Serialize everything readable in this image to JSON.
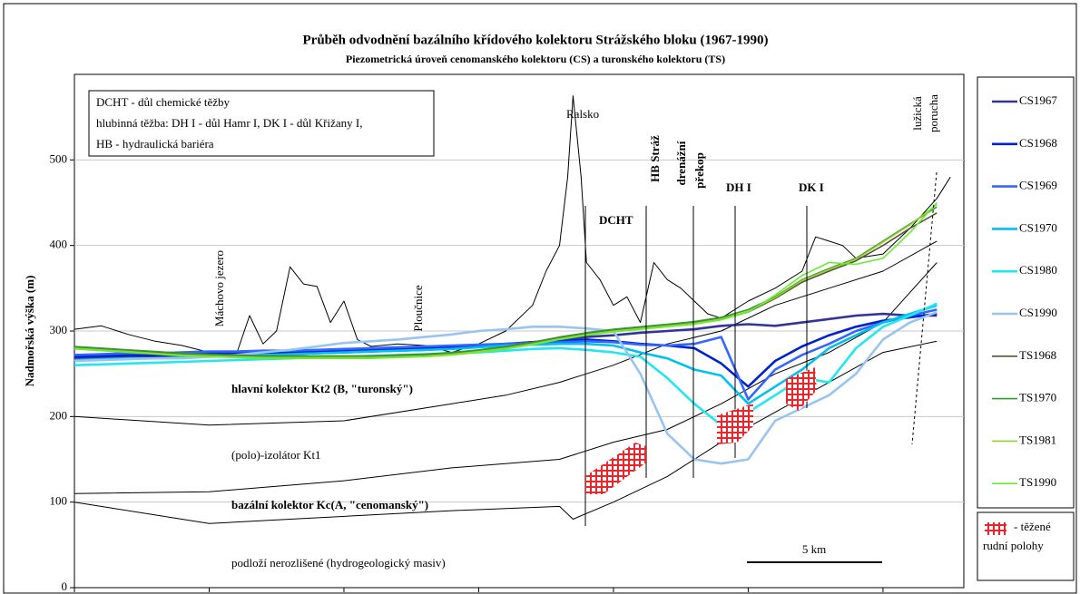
{
  "chart_data": {
    "type": "line",
    "title": "Průběh odvodnění bazálního křídového kolektoru Strážského bloku (1967-1990)",
    "subtitle": "Piezometrická úroveň cenomanského kolektoru (CS) a turonského kolektoru (TS)",
    "y_label": "Nadmořská výška (m)",
    "ylim": [
      0,
      600
    ],
    "yticks": [
      0,
      100,
      200,
      300,
      400,
      500
    ],
    "xlim": [
      0,
      33
    ],
    "xticks": [
      0,
      5,
      10,
      15,
      20,
      25,
      30
    ],
    "grid": true,
    "legend": "right",
    "x": [
      0,
      1,
      2,
      3,
      4,
      5,
      6,
      7,
      8,
      9,
      10,
      11,
      12,
      13,
      14,
      15,
      16,
      17,
      18,
      19,
      20,
      21,
      22,
      23,
      24,
      25,
      26,
      27,
      28,
      29,
      30,
      31,
      32
    ],
    "series": [
      {
        "name": "CS1967",
        "color": "#333399",
        "values": [
          268,
          269,
          270,
          270,
          271,
          272,
          272,
          273,
          273,
          274,
          275,
          276,
          277,
          278,
          280,
          282,
          284,
          287,
          290,
          293,
          295,
          298,
          300,
          302,
          306,
          308,
          306,
          310,
          314,
          318,
          320,
          318,
          318
        ]
      },
      {
        "name": "CS1968",
        "color": "#0022cc",
        "values": [
          270,
          271,
          272,
          272,
          273,
          274,
          274,
          275,
          275,
          276,
          277,
          278,
          279,
          280,
          281,
          283,
          285,
          287,
          288,
          290,
          288,
          285,
          283,
          280,
          262,
          235,
          265,
          282,
          295,
          305,
          312,
          316,
          320
        ]
      },
      {
        "name": "CS1969",
        "color": "#3366ff",
        "values": [
          272,
          273,
          274,
          274,
          275,
          276,
          276,
          277,
          277,
          278,
          279,
          280,
          281,
          282,
          283,
          284,
          285,
          286,
          287,
          288,
          287,
          284,
          283,
          285,
          293,
          220,
          255,
          272,
          285,
          300,
          310,
          318,
          325
        ]
      },
      {
        "name": "CS1970",
        "color": "#00c0f0",
        "values": [
          266,
          267,
          268,
          268,
          269,
          270,
          271,
          272,
          273,
          274,
          275,
          276,
          277,
          278,
          279,
          281,
          283,
          284,
          285,
          285,
          283,
          275,
          268,
          255,
          248,
          215,
          235,
          255,
          280,
          295,
          310,
          320,
          330
        ]
      },
      {
        "name": "CS1980",
        "color": "#22e6f0",
        "values": [
          260,
          261,
          262,
          263,
          264,
          265,
          266,
          267,
          268,
          269,
          270,
          271,
          272,
          273,
          274,
          275,
          277,
          279,
          280,
          278,
          275,
          270,
          245,
          215,
          190,
          205,
          225,
          245,
          240,
          280,
          305,
          318,
          332
        ]
      },
      {
        "name": "CS1990",
        "color": "#99c4f0",
        "values": [
          265,
          266,
          267,
          268,
          268,
          270,
          272,
          275,
          278,
          282,
          286,
          288,
          290,
          293,
          296,
          300,
          302,
          305,
          305,
          303,
          300,
          250,
          180,
          150,
          145,
          150,
          195,
          210,
          225,
          250,
          290,
          310,
          322
        ]
      },
      {
        "name": "TS1968",
        "color": "#555533",
        "values": [
          281,
          279,
          277,
          275,
          273,
          272,
          271,
          270,
          270,
          270,
          270,
          270,
          271,
          272,
          274,
          277,
          281,
          286,
          292,
          297,
          301,
          304,
          307,
          310,
          315,
          322,
          338,
          357,
          370,
          382,
          400,
          420,
          438
        ]
      },
      {
        "name": "TS1970",
        "color": "#339933",
        "values": [
          282,
          280,
          278,
          276,
          274,
          273,
          272,
          271,
          271,
          271,
          271,
          271,
          272,
          273,
          275,
          278,
          282,
          287,
          293,
          298,
          302,
          305,
          308,
          311,
          316,
          325,
          340,
          360,
          373,
          385,
          405,
          425,
          445
        ]
      },
      {
        "name": "TS1981",
        "color": "#99cc33",
        "values": [
          280,
          278,
          276,
          274,
          272,
          271,
          270,
          269,
          269,
          269,
          269,
          269,
          270,
          271,
          273,
          276,
          280,
          285,
          291,
          296,
          300,
          303,
          306,
          309,
          314,
          323,
          339,
          359,
          372,
          384,
          404,
          424,
          448
        ]
      },
      {
        "name": "TS1990",
        "color": "#66ee33",
        "values": [
          279,
          277,
          275,
          273,
          271,
          270,
          269,
          268,
          268,
          268,
          268,
          268,
          269,
          270,
          272,
          275,
          279,
          284,
          290,
          295,
          299,
          302,
          305,
          308,
          313,
          322,
          342,
          365,
          380,
          378,
          385,
          415,
          450
        ]
      }
    ],
    "terrain": {
      "color": "#000000",
      "x": [
        0,
        1,
        2,
        3,
        4,
        5,
        5.5,
        6,
        6.5,
        7,
        7.5,
        8,
        8.5,
        9,
        9.5,
        10,
        10.5,
        11,
        12,
        13,
        14,
        15,
        16,
        17,
        17.5,
        18,
        18.3,
        18.5,
        18.8,
        19,
        19.5,
        20,
        20.5,
        21,
        21.5,
        22,
        22.5,
        23,
        23.5,
        24,
        25,
        26,
        27,
        27.5,
        28,
        28.5,
        29,
        30,
        31,
        32,
        32.5
      ],
      "values": [
        302,
        306,
        296,
        288,
        283,
        275,
        270,
        272,
        318,
        285,
        300,
        375,
        355,
        352,
        310,
        335,
        290,
        282,
        285,
        283,
        275,
        285,
        300,
        330,
        370,
        400,
        480,
        575,
        480,
        380,
        360,
        330,
        340,
        310,
        380,
        360,
        350,
        335,
        320,
        315,
        335,
        350,
        370,
        410,
        405,
        400,
        385,
        390,
        420,
        455,
        480
      ]
    },
    "boundaries": [
      {
        "color": "#000000",
        "x": [
          0,
          5,
          10,
          14,
          16,
          18,
          20,
          22,
          24,
          26,
          28,
          30,
          32
        ],
        "values": [
          200,
          190,
          195,
          215,
          225,
          240,
          260,
          285,
          300,
          330,
          350,
          370,
          405
        ]
      },
      {
        "color": "#000000",
        "x": [
          0,
          5,
          10,
          14,
          18,
          20,
          22,
          24,
          26,
          28,
          30,
          32
        ],
        "values": [
          110,
          112,
          125,
          140,
          150,
          170,
          185,
          215,
          250,
          275,
          310,
          380
        ]
      },
      {
        "color": "#000000",
        "x": [
          0,
          5,
          8,
          14,
          18,
          18.5,
          20,
          22,
          24,
          26,
          28,
          30,
          32
        ],
        "values": [
          100,
          75,
          80,
          90,
          95,
          80,
          100,
          130,
          170,
          205,
          240,
          275,
          288
        ]
      }
    ],
    "annotations": [
      "DCHT - důl chemické těžby",
      "hlubinná těžba:  DH I - důl Hamr I,  DK I - důl Křižany I,",
      "HB - hydraulická bariéra",
      "Ralsko",
      "Máchovo jezero",
      "Ploučnice",
      "DCHT",
      "HB Stráž",
      "drenážní",
      "překop",
      "DH I",
      "DK I",
      "lužická",
      "porucha",
      "hlavní kolektor Kt2 (B, \"turonský\")",
      "(polo)-izolátor Kt1",
      "bazální kolektor Kc(A, \"cenomanský\")",
      "podloží nerozlišené (hydrogeologický masiv)",
      "5 km",
      "- těžené",
      "rudní polohy"
    ]
  }
}
